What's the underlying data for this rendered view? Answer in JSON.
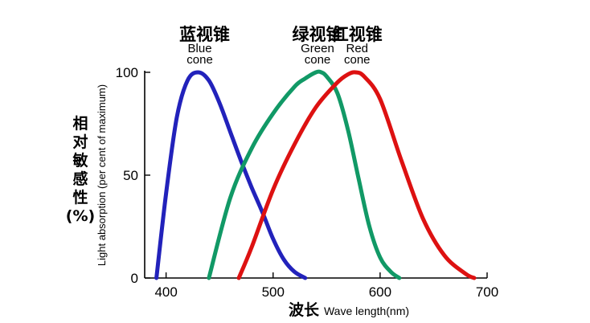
{
  "chart_data": {
    "type": "line",
    "xlabel_cn": "波长",
    "xlabel_en": "Wave length(nm)",
    "ylabel_cn": [
      "相",
      "对",
      "敏",
      "感",
      "性",
      "(%)"
    ],
    "ylabel_en": "Light absorption (per cent of maximum)",
    "xlim": [
      380,
      700
    ],
    "ylim": [
      0,
      100
    ],
    "x_ticks": [
      400,
      500,
      600,
      700
    ],
    "y_ticks": [
      0,
      50,
      100
    ],
    "grid": false,
    "series": [
      {
        "name_cn": "蓝视锥",
        "name_en": [
          "Blue",
          "cone"
        ],
        "color": "#2222bb",
        "x": [
          391,
          400,
          410,
          420,
          430,
          440,
          450,
          460,
          470,
          480,
          490,
          500,
          510,
          520,
          530
        ],
        "y": [
          0,
          41,
          78,
          96,
          100,
          96,
          85,
          71,
          57,
          44,
          32,
          19,
          9,
          3,
          0
        ]
      },
      {
        "name_cn": "绿视锥",
        "name_en": [
          "Green",
          "cone"
        ],
        "color": "#119966",
        "x": [
          440,
          460,
          480,
          500,
          520,
          530,
          540,
          545,
          550,
          560,
          570,
          580,
          590,
          600,
          610,
          618
        ],
        "y": [
          0,
          39,
          63,
          80,
          93,
          97,
          100,
          100,
          98,
          90,
          72,
          48,
          25,
          10,
          3,
          0
        ]
      },
      {
        "name_cn": "红视锥",
        "name_en": [
          "Red",
          "cone"
        ],
        "color": "#dd1111",
        "x": [
          468,
          480,
          500,
          520,
          540,
          560,
          570,
          577,
          585,
          600,
          620,
          640,
          660,
          680,
          688
        ],
        "y": [
          0,
          15,
          43,
          65,
          83,
          95,
          99,
          100,
          98,
          87,
          57,
          29,
          11,
          2,
          0
        ]
      }
    ]
  }
}
